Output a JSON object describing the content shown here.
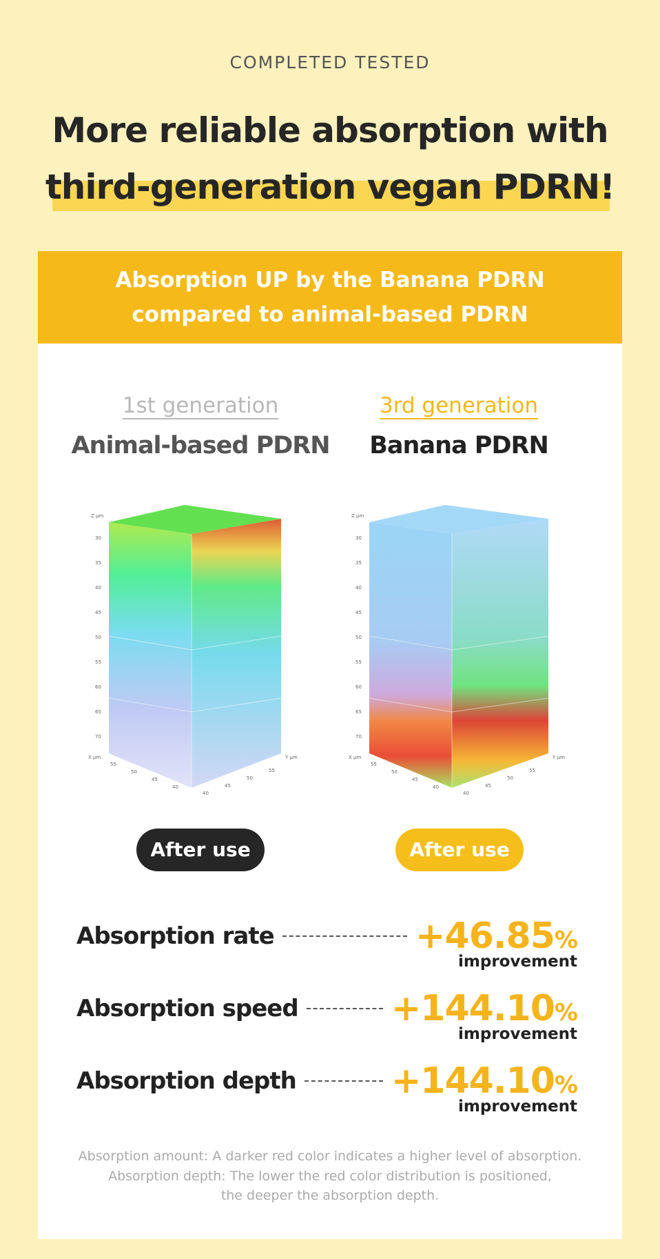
{
  "header": {
    "eyebrow": "COMPLETED TESTED",
    "title_line1": "More reliable absorption with",
    "title_line2": "third-generation vegan PDRN!"
  },
  "panel": {
    "banner_line1": "Absorption UP by the Banana PDRN",
    "banner_line2": "compared to animal-based PDRN",
    "columns": [
      {
        "generation": "1st generation",
        "name": "Animal-based PDRN",
        "badge": "After use",
        "axes": {
          "z_title": "Z µm",
          "z_ticks": [
            "30",
            "35",
            "40",
            "45",
            "50",
            "55",
            "60",
            "65",
            "70"
          ],
          "x_title": "X µm",
          "x_ticks": [
            "55",
            "50",
            "45",
            "40"
          ],
          "y_title": "Y µm",
          "y_ticks": [
            "40",
            "45",
            "50",
            "55"
          ]
        }
      },
      {
        "generation": "3rd generation",
        "name": "Banana PDRN",
        "badge": "After use",
        "axes": {
          "z_title": "Z µm",
          "z_ticks": [
            "30",
            "35",
            "40",
            "45",
            "50",
            "55",
            "60",
            "65",
            "70"
          ],
          "x_title": "X µm",
          "x_ticks": [
            "55",
            "50",
            "45",
            "40"
          ],
          "y_title": "Y µm",
          "y_ticks": [
            "40",
            "45",
            "50",
            "55"
          ]
        }
      }
    ],
    "metrics": [
      {
        "label": "Absorption rate",
        "value": "+46.85",
        "unit": "%",
        "note": "improvement"
      },
      {
        "label": "Absorption speed",
        "value": "+144.10",
        "unit": "%",
        "note": "improvement"
      },
      {
        "label": "Absorption depth",
        "value": "+144.10",
        "unit": "%",
        "note": "improvement"
      }
    ],
    "footnote": [
      "Absorption amount: A darker red color indicates a higher level of absorption.",
      "Absorption depth: The lower the red color distribution is positioned,",
      "the deeper the absorption depth."
    ]
  }
}
